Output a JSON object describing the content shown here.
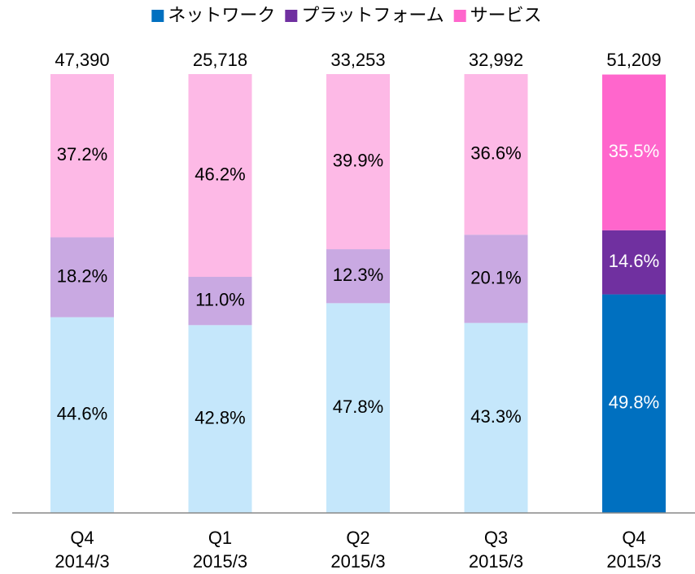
{
  "chart_data": {
    "type": "stacked_bar_100",
    "categories": [
      [
        "Q4",
        "2014/3"
      ],
      [
        "Q1",
        "2015/3"
      ],
      [
        "Q2",
        "2015/3"
      ],
      [
        "Q3",
        "2015/3"
      ],
      [
        "Q4",
        "2015/3"
      ]
    ],
    "totals": [
      47390,
      25718,
      33253,
      32992,
      51209
    ],
    "totals_labels": [
      "47,390",
      "25,718",
      "33,253",
      "32,992",
      "51,209"
    ],
    "ylim": [
      0,
      100
    ],
    "series": [
      {
        "name": "ネットワーク",
        "color": "#0070c0",
        "colors": [
          "#c5e7fb",
          "#c5e7fb",
          "#c5e7fb",
          "#c5e7fb",
          "#0070c0"
        ],
        "values": [
          44.6,
          42.8,
          47.8,
          43.3,
          49.8
        ],
        "value_labels": [
          "44.6%",
          "42.8%",
          "47.8%",
          "43.3%",
          "49.8%"
        ]
      },
      {
        "name": "プラットフォーム",
        "color": "#7030a0",
        "colors": [
          "#c9a9e2",
          "#c9a9e2",
          "#c9a9e2",
          "#c9a9e2",
          "#7030a0"
        ],
        "values": [
          18.2,
          11.0,
          12.3,
          20.1,
          14.6
        ],
        "value_labels": [
          "18.2%",
          "11.0%",
          "12.3%",
          "20.1%",
          "14.6%"
        ]
      },
      {
        "name": "サービス",
        "color": "#ff66cc",
        "colors": [
          "#fdb9e6",
          "#fdb9e6",
          "#fdb9e6",
          "#fdb9e6",
          "#ff66cc"
        ],
        "values": [
          37.2,
          46.2,
          39.9,
          36.6,
          35.5
        ],
        "value_labels": [
          "37.2%",
          "46.2%",
          "39.9%",
          "36.6%",
          "35.5%"
        ]
      }
    ],
    "legend": "top"
  }
}
